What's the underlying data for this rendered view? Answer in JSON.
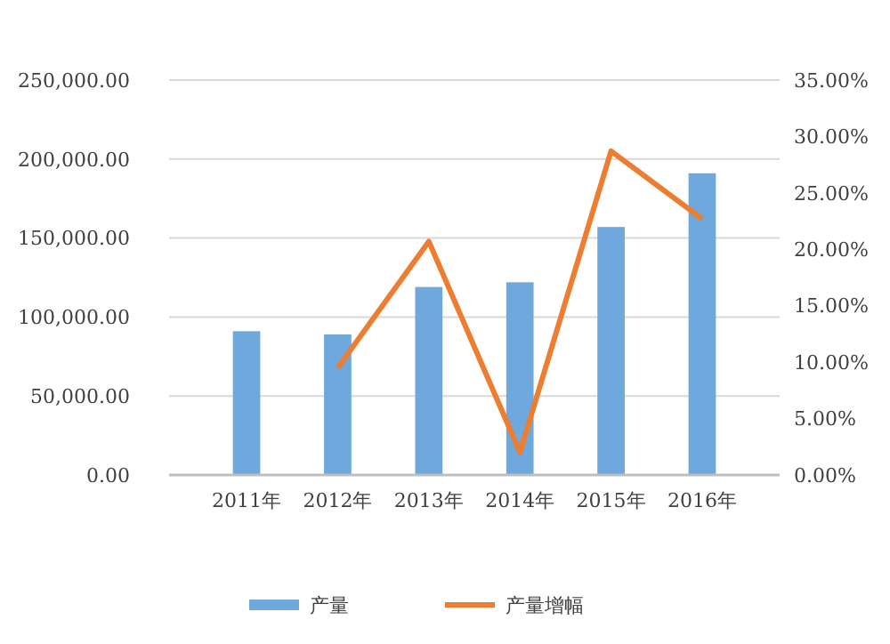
{
  "chart_data": {
    "type": "bar",
    "categories": [
      "2011年",
      "2012年",
      "2013年",
      "2014年",
      "2015年",
      "2016年"
    ],
    "series": [
      {
        "name": "产量",
        "color": "#6fa8dc",
        "values": [
          91000,
          89000,
          119000,
          122000,
          157000,
          191000
        ]
      },
      {
        "name": "产量增幅",
        "type": "line",
        "axis": "y2",
        "color": "#ed7d31",
        "values": [
          null,
          9.5,
          20.7,
          2.0,
          28.7,
          22.7
        ]
      }
    ],
    "ylim": [
      0,
      250000
    ],
    "yticks": [
      {
        "value": 0,
        "label": "0.00"
      },
      {
        "value": 50000,
        "label": "50,000.00"
      },
      {
        "value": 100000,
        "label": "100,000.00"
      },
      {
        "value": 150000,
        "label": "150,000.00"
      },
      {
        "value": 200000,
        "label": "200,000.00"
      },
      {
        "value": 250000,
        "label": "250,000.00"
      }
    ],
    "y2lim": [
      0,
      35
    ],
    "y2ticks": [
      {
        "value": 0,
        "label": "0.00%"
      },
      {
        "value": 5,
        "label": "5.00%"
      },
      {
        "value": 10,
        "label": "10.00%"
      },
      {
        "value": 15,
        "label": "15.00%"
      },
      {
        "value": 20,
        "label": "20.00%"
      },
      {
        "value": 25,
        "label": "25.00%"
      },
      {
        "value": 30,
        "label": "30.00%"
      },
      {
        "value": 35,
        "label": "35.00%"
      }
    ],
    "grid": "y",
    "legend": "bottom",
    "marker": "none",
    "line_style": "solid"
  }
}
